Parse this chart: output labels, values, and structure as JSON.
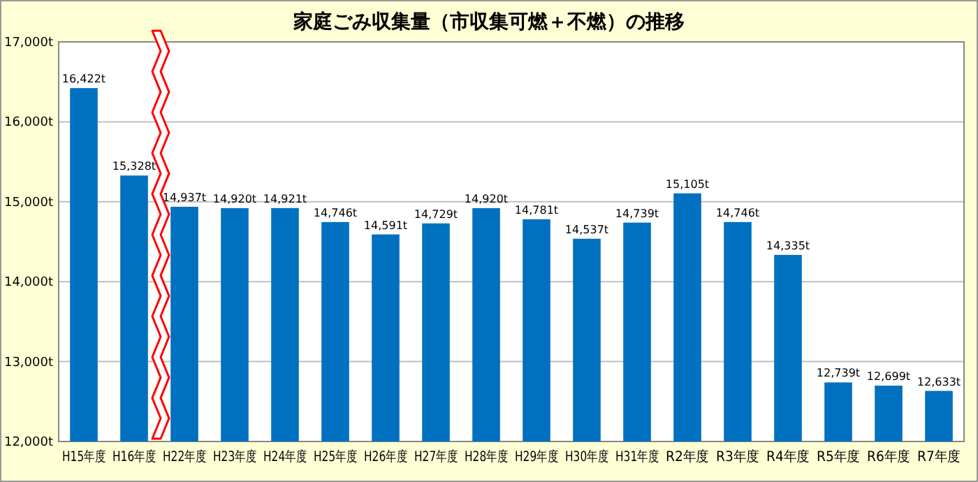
{
  "chart_data": {
    "type": "bar",
    "title": "家庭ごみ収集量（市収集可燃＋不燃）の推移",
    "categories": [
      "H15年度",
      "H16年度",
      "H22年度",
      "H23年度",
      "H24年度",
      "H25年度",
      "H26年度",
      "H27年度",
      "H28年度",
      "H29年度",
      "H30年度",
      "H31年度",
      "R2年度",
      "R3年度",
      "R4年度",
      "R5年度",
      "R6年度",
      "R7年度"
    ],
    "values": [
      16422,
      15328,
      14937,
      14920,
      14921,
      14746,
      14591,
      14729,
      14920,
      14781,
      14537,
      14739,
      15105,
      14746,
      14335,
      12739,
      12699,
      12633
    ],
    "value_labels": [
      "16,422t",
      "15,328t",
      "14,937t",
      "14,920t",
      "14,921t",
      "14,746t",
      "14,591t",
      "14,729t",
      "14,920t",
      "14,781t",
      "14,537t",
      "14,739t",
      "15,105t",
      "14,746t",
      "14,335t",
      "12,739t",
      "12,699t",
      "12,633t"
    ],
    "color": "#0070c0",
    "ylim": [
      12000,
      17000
    ],
    "yticks": [
      {
        "value": 12000,
        "label": "12,000t"
      },
      {
        "value": 13000,
        "label": "13,000t"
      },
      {
        "value": 14000,
        "label": "14,000t"
      },
      {
        "value": 15000,
        "label": "15,000t"
      },
      {
        "value": 16000,
        "label": "16,000t"
      },
      {
        "value": 17000,
        "label": "17,000t"
      }
    ],
    "grid": "y"
  }
}
